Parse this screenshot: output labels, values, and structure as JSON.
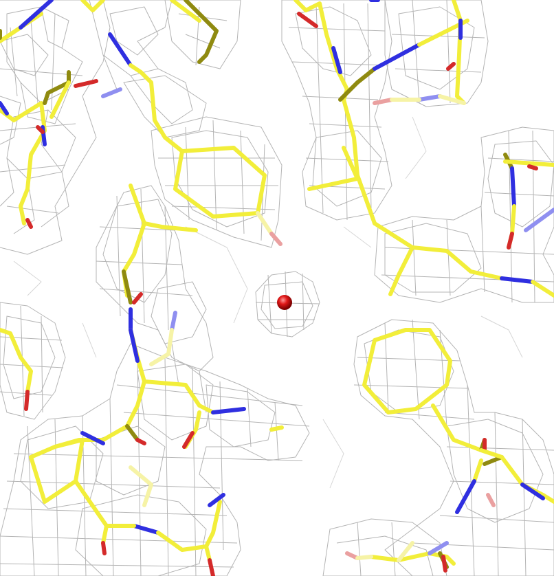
{
  "scene": {
    "description_type": "electron-density-map",
    "background_color": "#ffffff",
    "mesh_color": "#b4b4b4",
    "carbon_color": "#f2ee3a",
    "nitrogen_color": "#2f2fe0",
    "oxygen_color": "#d42a2a",
    "water_color": "#e01818"
  }
}
